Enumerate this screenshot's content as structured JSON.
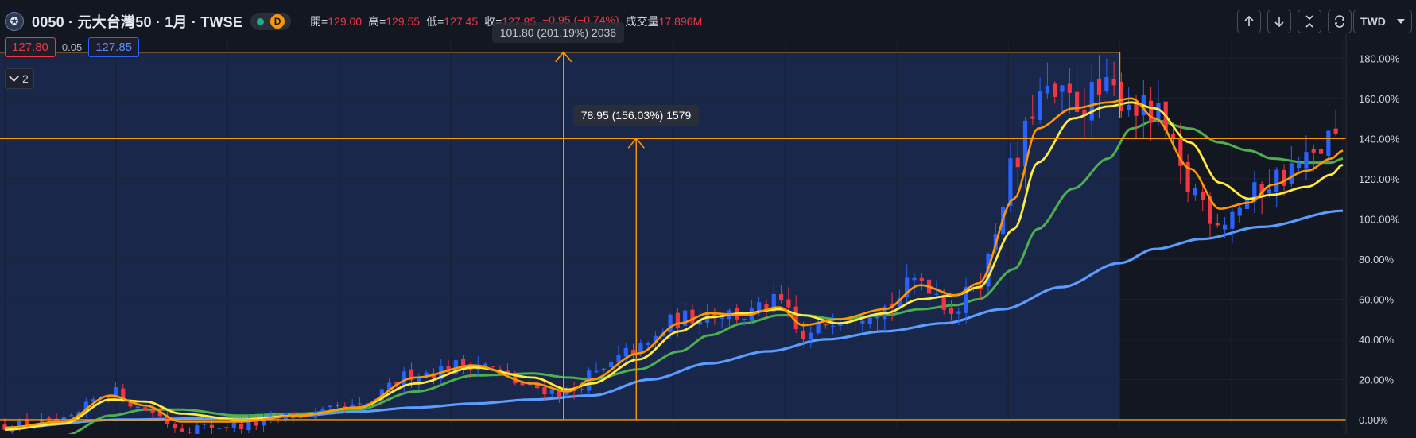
{
  "header": {
    "symbol_title": "0050 · 元大台灣50 · 1月 · TWSE",
    "interval_badge": "D",
    "ohlc": [
      {
        "label": "開=",
        "value": "129.00"
      },
      {
        "label": "高=",
        "value": "129.55"
      },
      {
        "label": "低=",
        "value": "127.45"
      },
      {
        "label": "收=",
        "value": "127.85"
      },
      {
        "label": "",
        "value": "−0.95 (−0.74%)"
      },
      {
        "label": "成交量",
        "value": "17.896M"
      }
    ]
  },
  "quote": {
    "bid": "127.80",
    "spread": "0.05",
    "ask": "127.85"
  },
  "indicator_toggle": {
    "count": "2"
  },
  "toolbar": {
    "up_icon": "arrow-up-icon",
    "down_icon": "arrow-down-icon",
    "collapse_icon": "collapse-icon",
    "refresh_icon": "refresh-icon"
  },
  "currency": "TWD",
  "measure_tool": {
    "label_1": "101.80 (201.19%) 2036",
    "label_2": "78.95 (156.03%) 1579"
  },
  "colors": {
    "background": "#131722",
    "highlight": "#1b2a52",
    "up": "#2962ff",
    "down": "#f23645",
    "ma_short": "#ff9800",
    "ma_mid": "#ffeb3b",
    "ma_long": "#4caf50",
    "ma_longest": "#5b9cff",
    "measure": "#ff9800"
  },
  "chart_data": {
    "type": "candlestick",
    "y_axis": {
      "scale": "percent",
      "range": [
        -4,
        190
      ],
      "ticks": [
        "180.00%",
        "160.00%",
        "140.00%",
        "120.00%",
        "100.00%",
        "80.00%",
        "60.00%",
        "40.00%",
        "20.00%",
        "0.00%"
      ]
    },
    "series": [
      {
        "role": "price",
        "x_count": 182,
        "keypoints_pct": [
          [
            0,
            -3
          ],
          [
            10,
            -1
          ],
          [
            18,
            14
          ],
          [
            24,
            5
          ],
          [
            30,
            -4
          ],
          [
            40,
            -3
          ],
          [
            50,
            2
          ],
          [
            60,
            6
          ],
          [
            70,
            23
          ],
          [
            80,
            28
          ],
          [
            90,
            16
          ],
          [
            96,
            13
          ],
          [
            100,
            22
          ],
          [
            108,
            35
          ],
          [
            115,
            50
          ],
          [
            120,
            54
          ],
          [
            126,
            52
          ],
          [
            132,
            58
          ],
          [
            136,
            40
          ],
          [
            142,
            52
          ],
          [
            150,
            56
          ],
          [
            156,
            70
          ],
          [
            162,
            55
          ],
          [
            166,
            70
          ],
          [
            172,
            125
          ],
          [
            176,
            160
          ],
          [
            182,
            158
          ],
          [
            188,
            162
          ],
          [
            190,
            162
          ],
          [
            196,
            150
          ],
          [
            202,
            115
          ],
          [
            207,
            100
          ],
          [
            212,
            110
          ],
          [
            216,
            120
          ],
          [
            222,
            128
          ],
          [
            226,
            140
          ],
          [
            228,
            137
          ]
        ]
      },
      {
        "role": "ma_short",
        "keypoints_pct": [
          [
            0,
            -4
          ],
          [
            10,
            -1
          ],
          [
            18,
            12
          ],
          [
            24,
            7
          ],
          [
            30,
            -1
          ],
          [
            40,
            -1
          ],
          [
            50,
            2
          ],
          [
            60,
            6
          ],
          [
            70,
            21
          ],
          [
            80,
            27
          ],
          [
            90,
            18
          ],
          [
            96,
            14
          ],
          [
            100,
            20
          ],
          [
            108,
            33
          ],
          [
            115,
            48
          ],
          [
            120,
            53
          ],
          [
            126,
            52
          ],
          [
            132,
            56
          ],
          [
            136,
            47
          ],
          [
            142,
            50
          ],
          [
            150,
            55
          ],
          [
            156,
            67
          ],
          [
            162,
            62
          ],
          [
            166,
            68
          ],
          [
            172,
            110
          ],
          [
            176,
            145
          ],
          [
            182,
            155
          ],
          [
            188,
            158
          ],
          [
            192,
            160
          ],
          [
            196,
            150
          ],
          [
            202,
            125
          ],
          [
            207,
            105
          ],
          [
            212,
            108
          ],
          [
            216,
            117
          ],
          [
            222,
            124
          ],
          [
            226,
            130
          ],
          [
            228,
            134
          ]
        ]
      },
      {
        "role": "ma_mid",
        "keypoints_pct": [
          [
            0,
            -5
          ],
          [
            10,
            -2
          ],
          [
            18,
            10
          ],
          [
            24,
            9
          ],
          [
            30,
            3
          ],
          [
            40,
            0
          ],
          [
            50,
            2
          ],
          [
            60,
            6
          ],
          [
            70,
            18
          ],
          [
            80,
            26
          ],
          [
            90,
            21
          ],
          [
            96,
            15
          ],
          [
            100,
            18
          ],
          [
            108,
            30
          ],
          [
            115,
            44
          ],
          [
            120,
            51
          ],
          [
            126,
            53
          ],
          [
            132,
            55
          ],
          [
            136,
            52
          ],
          [
            142,
            48
          ],
          [
            150,
            53
          ],
          [
            156,
            60
          ],
          [
            162,
            62
          ],
          [
            166,
            66
          ],
          [
            172,
            95
          ],
          [
            176,
            128
          ],
          [
            182,
            150
          ],
          [
            188,
            156
          ],
          [
            192,
            158
          ],
          [
            196,
            155
          ],
          [
            202,
            138
          ],
          [
            207,
            118
          ],
          [
            212,
            110
          ],
          [
            216,
            112
          ],
          [
            222,
            116
          ],
          [
            226,
            122
          ],
          [
            228,
            127
          ]
        ]
      },
      {
        "role": "ma_long",
        "keypoints_pct": [
          [
            10,
            -8
          ],
          [
            18,
            2
          ],
          [
            24,
            5
          ],
          [
            30,
            5
          ],
          [
            40,
            2
          ],
          [
            50,
            3
          ],
          [
            60,
            5
          ],
          [
            70,
            14
          ],
          [
            80,
            22
          ],
          [
            90,
            23
          ],
          [
            96,
            21
          ],
          [
            100,
            20
          ],
          [
            108,
            25
          ],
          [
            115,
            34
          ],
          [
            120,
            42
          ],
          [
            126,
            48
          ],
          [
            132,
            52
          ],
          [
            136,
            52
          ],
          [
            142,
            50
          ],
          [
            150,
            52
          ],
          [
            156,
            55
          ],
          [
            162,
            57
          ],
          [
            166,
            60
          ],
          [
            172,
            75
          ],
          [
            176,
            95
          ],
          [
            182,
            115
          ],
          [
            188,
            130
          ],
          [
            192,
            145
          ],
          [
            196,
            149
          ],
          [
            202,
            145
          ],
          [
            207,
            138
          ],
          [
            212,
            134
          ],
          [
            216,
            130
          ],
          [
            222,
            128
          ],
          [
            226,
            128
          ],
          [
            228,
            130
          ]
        ]
      },
      {
        "role": "ma_longest",
        "keypoints_pct": [
          [
            0,
            -4
          ],
          [
            20,
            0
          ],
          [
            40,
            1
          ],
          [
            50,
            2
          ],
          [
            60,
            4
          ],
          [
            70,
            6
          ],
          [
            80,
            8
          ],
          [
            90,
            10
          ],
          [
            100,
            12
          ],
          [
            110,
            20
          ],
          [
            120,
            28
          ],
          [
            130,
            34
          ],
          [
            140,
            40
          ],
          [
            150,
            44
          ],
          [
            160,
            48
          ],
          [
            170,
            55
          ],
          [
            180,
            66
          ],
          [
            190,
            78
          ],
          [
            196,
            85
          ],
          [
            204,
            90
          ],
          [
            214,
            96
          ],
          [
            228,
            104
          ]
        ]
      }
    ],
    "measure_tool": {
      "start_pct": 0,
      "end_pct_1": 183,
      "end_pct_2": 140
    }
  }
}
